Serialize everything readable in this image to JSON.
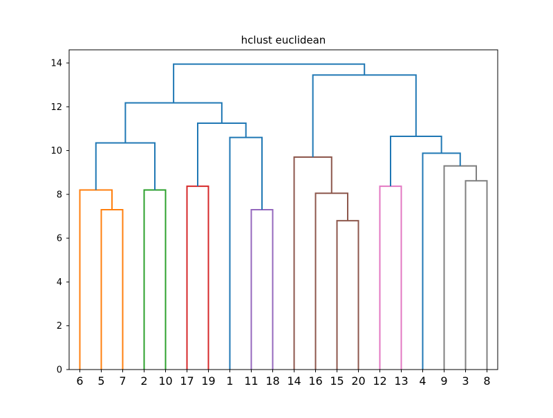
{
  "chart_data": {
    "type": "dendrogram",
    "title": "hclust euclidean",
    "xlabel": "",
    "ylabel": "",
    "ylim": [
      0,
      14.6
    ],
    "yticks": [
      0,
      2,
      4,
      6,
      8,
      10,
      12,
      14
    ],
    "grid": false,
    "leaf_order": [
      "6",
      "5",
      "7",
      "2",
      "10",
      "17",
      "19",
      "1",
      "11",
      "18",
      "14",
      "16",
      "15",
      "20",
      "12",
      "13",
      "4",
      "9",
      "3",
      "8"
    ],
    "merges": [
      {
        "left": "5",
        "right": "7",
        "height": 7.3,
        "color": "#ff7f0e"
      },
      {
        "left": "6",
        "right": "5|7",
        "height": 8.2,
        "color": "#ff7f0e"
      },
      {
        "left": "2",
        "right": "10",
        "height": 8.2,
        "color": "#2ca02c"
      },
      {
        "left": "6|5|7",
        "right": "2|10",
        "height": 10.35,
        "color": "#1f77b4"
      },
      {
        "left": "17",
        "right": "19",
        "height": 8.37,
        "color": "#d62728"
      },
      {
        "left": "11",
        "right": "18",
        "height": 7.3,
        "color": "#9467bd"
      },
      {
        "left": "1",
        "right": "11|18",
        "height": 10.6,
        "color": "#1f77b4"
      },
      {
        "left": "17|19",
        "right": "1|11|18",
        "height": 11.25,
        "color": "#1f77b4"
      },
      {
        "left": "6|5|7|2|10",
        "right": "17|19|1|11|18",
        "height": 12.18,
        "color": "#1f77b4"
      },
      {
        "left": "15",
        "right": "20",
        "height": 6.8,
        "color": "#8c564b"
      },
      {
        "left": "16",
        "right": "15|20",
        "height": 8.05,
        "color": "#8c564b"
      },
      {
        "left": "14",
        "right": "16|15|20",
        "height": 9.7,
        "color": "#8c564b"
      },
      {
        "left": "12",
        "right": "13",
        "height": 8.37,
        "color": "#e377c2"
      },
      {
        "left": "3",
        "right": "8",
        "height": 8.62,
        "color": "#7f7f7f"
      },
      {
        "left": "9",
        "right": "3|8",
        "height": 9.3,
        "color": "#7f7f7f"
      },
      {
        "left": "4",
        "right": "9|3|8",
        "height": 9.88,
        "color": "#1f77b4"
      },
      {
        "left": "12|13",
        "right": "4|9|3|8",
        "height": 10.65,
        "color": "#1f77b4"
      },
      {
        "left": "14|16|15|20",
        "right": "12|13|4|9|3|8",
        "height": 13.45,
        "color": "#1f77b4"
      },
      {
        "left": "6|5|7|2|10|17|19|1|11|18",
        "right": "14|16|15|20|12|13|4|9|3|8",
        "height": 13.95,
        "color": "#1f77b4"
      }
    ]
  }
}
